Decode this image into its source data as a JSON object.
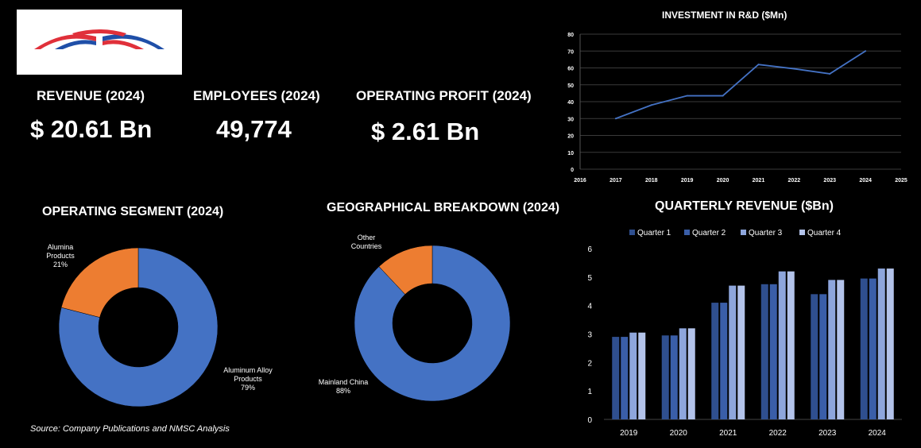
{
  "kpis": [
    {
      "label": "REVENUE (2024)",
      "value": "$ 20.61 Bn"
    },
    {
      "label": "EMPLOYEES (2024)",
      "value": "49,774"
    },
    {
      "label": "OPERATING PROFIT (2024)",
      "value": "$ 2.61 Bn"
    }
  ],
  "logo": {
    "colors": {
      "red": "#e0303a",
      "blue": "#1f4fa8"
    }
  },
  "source": "Source: Company Publications and NMSC Analysis",
  "colors": {
    "blue": "#4472c4",
    "orange": "#ed7d31",
    "q1": "#2f4f8f",
    "q2": "#3a5ea8",
    "q3": "#8ea6dc",
    "q4": "#b3c3ea"
  },
  "chart_data": [
    {
      "id": "rd",
      "type": "line",
      "title": "INVESTMENT IN R&D ($Mn)",
      "x": [
        2017,
        2018,
        2019,
        2020,
        2021,
        2022,
        2023,
        2024
      ],
      "y": [
        30,
        38,
        43.5,
        43.5,
        62,
        59.5,
        56.5,
        70
      ],
      "xlim": [
        2016,
        2025
      ],
      "ylim": [
        0,
        80
      ],
      "xticks": [
        "2016",
        "2017",
        "2018",
        "2019",
        "2020",
        "2021",
        "2022",
        "2023",
        "2024",
        "2025"
      ],
      "yticks": [
        "0",
        "10",
        "20",
        "30",
        "40",
        "50",
        "60",
        "70",
        "80"
      ],
      "grid": true
    },
    {
      "id": "segment",
      "type": "pie",
      "title": "OPERATING SEGMENT (2024)",
      "slices": [
        {
          "label": "Aluminum Alloy Products",
          "label_lines": [
            "Aluminum Alloy",
            "Products",
            "79%"
          ],
          "value": 79,
          "color": "#4472c4"
        },
        {
          "label": "Alumina Products",
          "label_lines": [
            "Alumina",
            "Products",
            "21%"
          ],
          "value": 21,
          "color": "#ed7d31"
        }
      ]
    },
    {
      "id": "geo",
      "type": "pie",
      "title": "GEOGRAPHICAL BREAKDOWN (2024)",
      "slices": [
        {
          "label": "Mainland China",
          "label_lines": [
            "Mainland China",
            "88%"
          ],
          "value": 88,
          "color": "#4472c4"
        },
        {
          "label": "Other Countries",
          "label_lines": [
            "Other",
            "Countries"
          ],
          "value": 12,
          "color": "#ed7d31"
        }
      ]
    },
    {
      "id": "quarterly",
      "type": "bar",
      "title": "QUARTERLY REVENUE ($Bn)",
      "categories": [
        "2019",
        "2020",
        "2021",
        "2022",
        "2023",
        "2024"
      ],
      "series": [
        {
          "name": "Quarter 1",
          "values": [
            2.9,
            2.95,
            4.1,
            4.75,
            4.4,
            4.95
          ]
        },
        {
          "name": "Quarter 2",
          "values": [
            2.9,
            2.95,
            4.1,
            4.75,
            4.4,
            4.95
          ]
        },
        {
          "name": "Quarter 3",
          "values": [
            3.05,
            3.2,
            4.7,
            5.2,
            4.9,
            5.3
          ]
        },
        {
          "name": "Quarter 4",
          "values": [
            3.05,
            3.2,
            4.7,
            5.2,
            4.9,
            5.3
          ]
        }
      ],
      "ylim": [
        0,
        6
      ],
      "yticks": [
        "0",
        "1",
        "2",
        "3",
        "4",
        "5",
        "6"
      ],
      "legend": "top"
    }
  ]
}
